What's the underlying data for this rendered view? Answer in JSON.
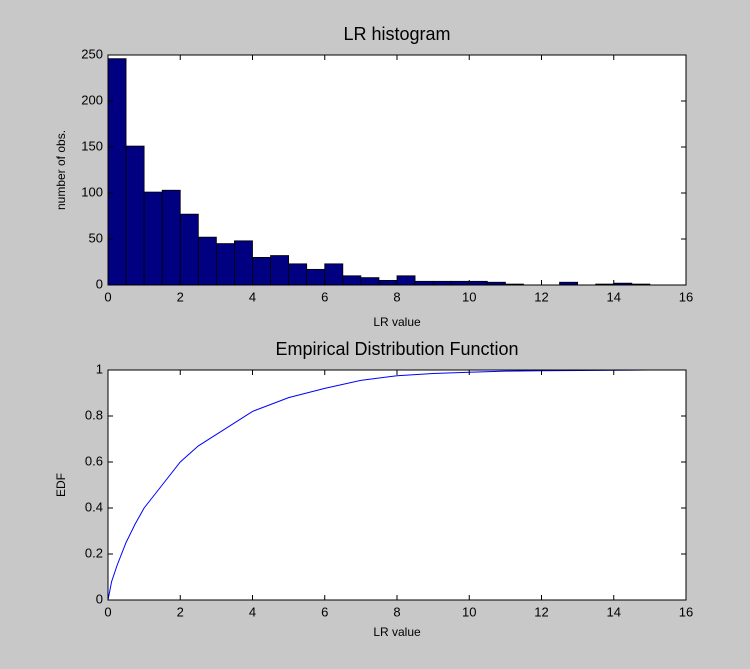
{
  "chart_data": [
    {
      "type": "histogram",
      "title": "LR histogram",
      "xlabel": "LR value",
      "ylabel": "number of obs.",
      "bins": [
        0,
        0.5,
        1,
        1.5,
        2,
        2.5,
        3,
        3.5,
        4,
        4.5,
        5,
        5.5,
        6,
        6.5,
        7,
        7.5,
        8,
        8.5,
        9,
        9.5,
        10,
        10.5,
        11,
        11.5,
        12,
        12.5,
        13,
        13.5,
        14,
        14.5,
        15
      ],
      "counts": [
        246,
        151,
        101,
        103,
        77,
        52,
        45,
        48,
        30,
        32,
        23,
        17,
        23,
        10,
        8,
        5,
        10,
        4,
        4,
        4,
        4,
        3,
        1,
        0,
        0,
        3,
        0,
        1,
        2,
        1
      ],
      "color": "#000080",
      "xlim": [
        0,
        16
      ],
      "xticks": [
        0,
        2,
        4,
        6,
        8,
        10,
        12,
        14,
        16
      ],
      "ylim": [
        0,
        250
      ],
      "yticks": [
        0,
        50,
        100,
        150,
        200,
        250
      ]
    },
    {
      "type": "line",
      "title": "Empirical Distribution Function",
      "xlabel": "LR value",
      "ylabel": "EDF",
      "x": [
        0,
        0.1,
        0.25,
        0.5,
        0.75,
        1,
        1.5,
        2,
        2.5,
        3,
        3.5,
        4,
        5,
        6,
        7,
        8,
        9,
        10,
        11,
        12,
        15
      ],
      "values": [
        0,
        0.08,
        0.15,
        0.25,
        0.33,
        0.4,
        0.5,
        0.6,
        0.67,
        0.72,
        0.77,
        0.82,
        0.88,
        0.92,
        0.955,
        0.975,
        0.985,
        0.99,
        0.995,
        0.997,
        1
      ],
      "color": "#0000ff",
      "xlim": [
        0,
        16
      ],
      "xticks": [
        0,
        2,
        4,
        6,
        8,
        10,
        12,
        14,
        16
      ],
      "ylim": [
        0,
        1
      ],
      "yticks": [
        0,
        0.2,
        0.4,
        0.6,
        0.8,
        1
      ]
    }
  ]
}
